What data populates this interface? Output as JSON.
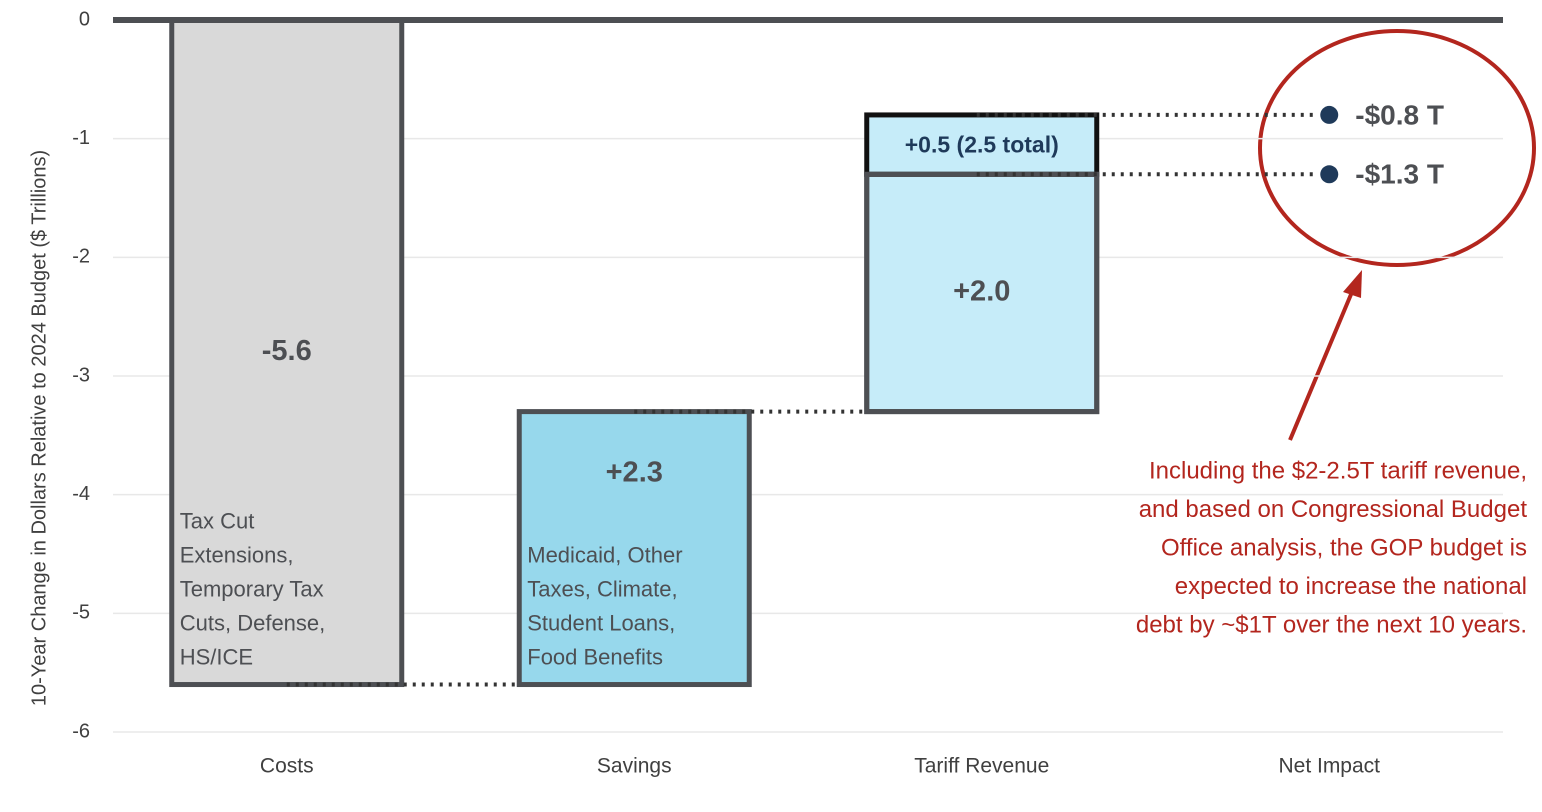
{
  "chart_data": {
    "type": "waterfall",
    "y_axis_label": "10-Year Change in Dollars Relative to 2024 Budget ($ Trillions)",
    "categories": [
      "Costs",
      "Savings",
      "Tariff Revenue",
      "Net Impact"
    ],
    "values": [
      -5.6,
      2.3,
      2.0,
      null
    ],
    "value_labels": [
      "-5.6",
      "+2.3",
      "+2.0",
      null
    ],
    "colors": [
      "#d9d9d9",
      "#97d8ec",
      "#c6ecf9",
      null
    ],
    "descriptions": [
      [
        "Tax Cut",
        "Extensions,",
        "Temporary Tax",
        "Cuts, Defense,",
        "HS/ICE"
      ],
      [
        "Medicaid, Other",
        "Taxes, Climate,",
        "Student Loans,",
        "Food Benefits"
      ],
      null,
      null
    ],
    "extra_segment": {
      "value": 0.5,
      "label": "+0.5 (2.5 total)"
    },
    "net_values": [
      -0.8,
      -1.3
    ],
    "net_labels": [
      "-$0.8 T",
      "-$1.3 T"
    ],
    "annotation": [
      "Including the $2-2.5T tariff revenue,",
      "and based on Congressional Budget",
      "Office analysis, the GOP budget is",
      "expected to increase the national",
      "debt by ~$1T over the next 10 years."
    ],
    "ylim": [
      -6,
      0
    ],
    "yticks": [
      0,
      -1,
      -2,
      -3,
      -4,
      -5,
      -6
    ],
    "grid": true
  }
}
